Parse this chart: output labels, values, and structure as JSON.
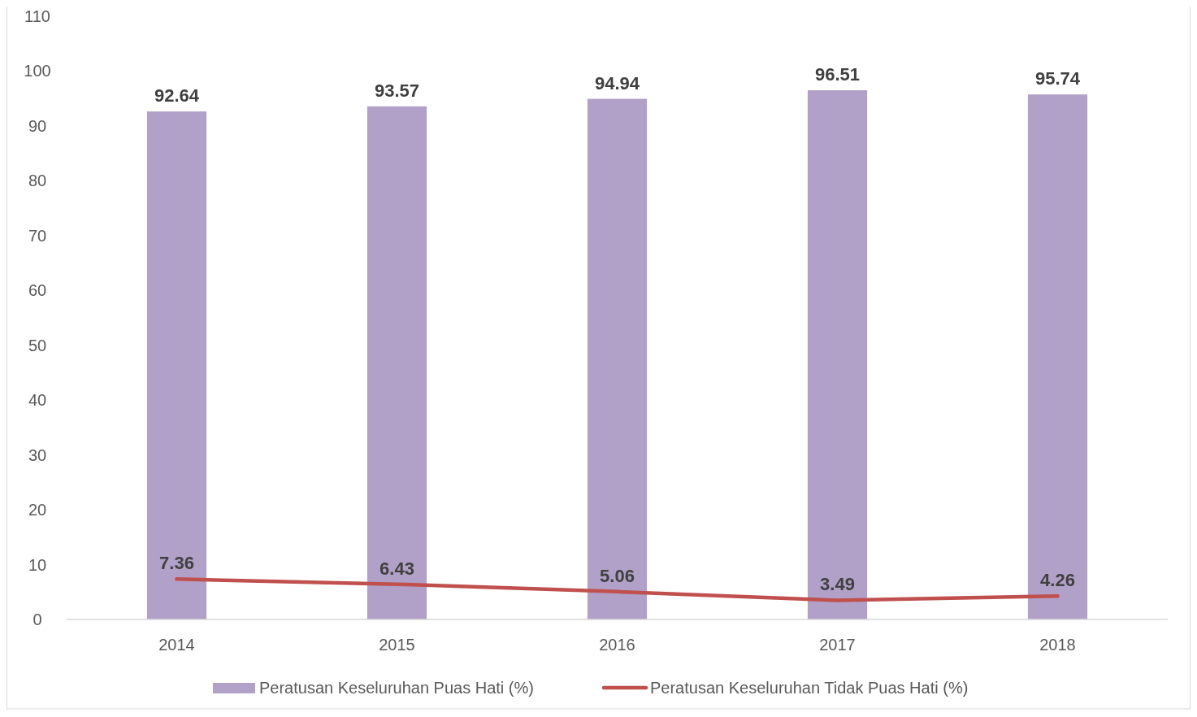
{
  "chart_data": {
    "type": "bar",
    "categories": [
      "2014",
      "2015",
      "2016",
      "2017",
      "2018"
    ],
    "series": [
      {
        "name": "Peratusan Keseluruhan Puas Hati (%)",
        "color": "#b1a0c7",
        "values": [
          92.64,
          93.57,
          94.94,
          96.51,
          95.74
        ]
      },
      {
        "name": "Peratusan Keseluruhan Tidak Puas Hati (%)",
        "type": "line",
        "color": "#c0504d",
        "values": [
          7.36,
          6.43,
          5.06,
          3.49,
          4.26
        ]
      }
    ],
    "ylim": [
      0,
      110
    ],
    "yticks": [
      0,
      10,
      20,
      30,
      40,
      50,
      60,
      70,
      80,
      90,
      100,
      110
    ],
    "data_labels": true,
    "legend": "bottom",
    "marker": "none",
    "line_style": "solid",
    "grid": false
  }
}
